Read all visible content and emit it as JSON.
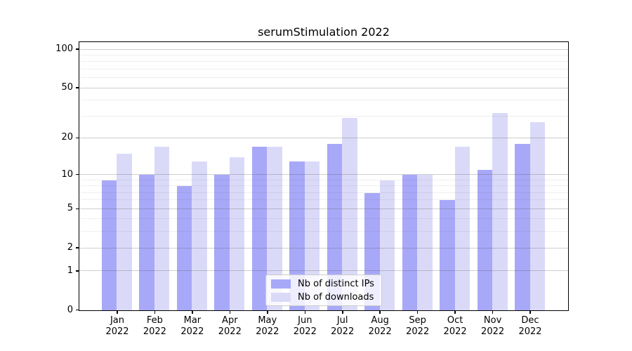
{
  "title": "serumStimulation 2022",
  "legend": {
    "items": [
      {
        "label": "Nb of distinct IPs"
      },
      {
        "label": "Nb of downloads"
      }
    ]
  },
  "colors": {
    "distinct_ips_bar": "#a8a8f8",
    "downloads_bar": "#dadaf8",
    "axis": "#000000",
    "background": "#ffffff"
  },
  "chart_data": {
    "type": "bar",
    "title": "serumStimulation 2022",
    "categories": [
      "Jan 2022",
      "Feb 2022",
      "Mar 2022",
      "Apr 2022",
      "May 2022",
      "Jun 2022",
      "Jul 2022",
      "Aug 2022",
      "Sep 2022",
      "Oct 2022",
      "Nov 2022",
      "Dec 2022"
    ],
    "series": [
      {
        "name": "Nb of distinct IPs",
        "color": "#a8a8f8",
        "values": [
          9,
          10,
          8,
          10,
          17,
          13,
          18,
          7,
          10,
          6,
          11,
          18
        ]
      },
      {
        "name": "Nb of downloads",
        "color": "#dadaf8",
        "values": [
          15,
          17,
          13,
          14,
          17,
          13,
          29,
          9,
          10,
          17,
          32,
          27
        ]
      }
    ],
    "xlabel": "",
    "ylabel": "",
    "yscale": "log10(1+y)",
    "ylim": [
      0,
      113
    ],
    "y_major_ticks": [
      100,
      50,
      20,
      10,
      5,
      2,
      1,
      0
    ],
    "y_minor_ticks": [
      3,
      4,
      6,
      7,
      8,
      9,
      30,
      40,
      60,
      70,
      80,
      90
    ],
    "grid": true,
    "legend_position": "lower center"
  }
}
